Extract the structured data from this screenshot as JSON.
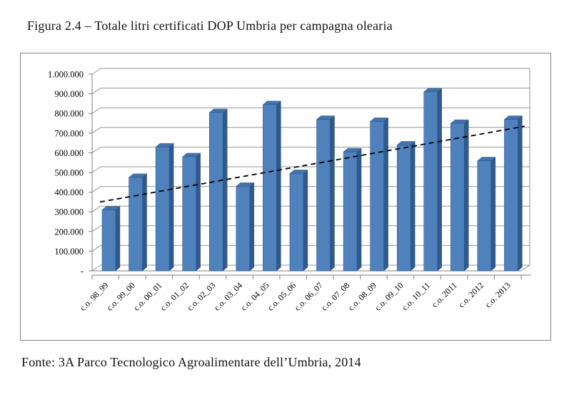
{
  "page": {
    "figure_title": "Figura 2.4 – Totale litri certificati DOP Umbria per campagna olearia",
    "source_note": "Fonte: 3A Parco Tecnologico Agroalimentare dell’Umbria, 2014"
  },
  "chart_data": {
    "type": "bar",
    "variant": "3d-column",
    "title": "",
    "xlabel": "",
    "ylabel": "",
    "ylim": [
      0,
      1000000
    ],
    "grid": true,
    "legend": "none",
    "categories": [
      "c.o. 98_99",
      "c.o. 99_00",
      "c.o. 00_01",
      "c.o. 01_02",
      "c.o. 02_03",
      "c.o. 03_04",
      "c.o. 04_05",
      "c.o. 05_06",
      "c.o. 06_07",
      "c.o. 07_08",
      "c.o. 08_09",
      "c.o. 09_10",
      "c.o. 10_11",
      "c.o. 2011",
      "c.o. 2012",
      "c.o. 2013"
    ],
    "values": [
      310000,
      475000,
      630000,
      580000,
      805000,
      430000,
      845000,
      495000,
      770000,
      605000,
      760000,
      640000,
      910000,
      750000,
      560000,
      770000
    ],
    "y_tick_values": [
      0,
      100000,
      200000,
      300000,
      400000,
      500000,
      600000,
      700000,
      800000,
      900000,
      1000000
    ],
    "y_tick_labels": [
      "-",
      "100.000",
      "200.000",
      "300.000",
      "400.000",
      "500.000",
      "600.000",
      "700.000",
      "800.000",
      "900.000",
      "1.000.000"
    ],
    "trendline": {
      "type": "linear",
      "style": "dashed",
      "color": "#000000",
      "start_value": 350000,
      "end_value": 735000
    },
    "colors": {
      "bar_face": "#4f81bd",
      "bar_side": "#2f5a8e",
      "bar_top": "#4273ac",
      "bar_edge": "#2c4d79",
      "gridline": "#969696",
      "axis": "#7f7f7f"
    }
  }
}
